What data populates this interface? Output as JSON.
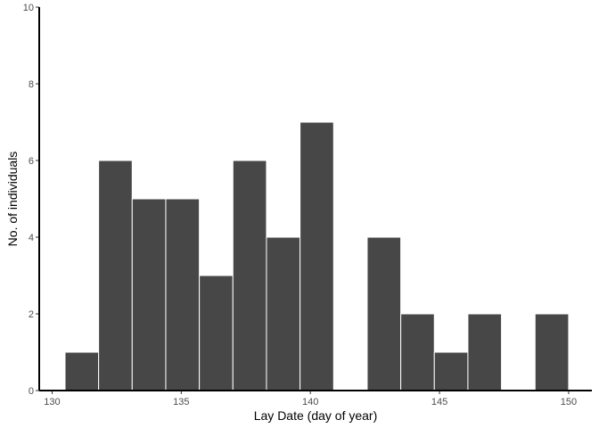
{
  "chart_data": {
    "type": "bar",
    "xlabel": "Lay Date (day of year)",
    "ylabel": "No. of individuals",
    "xlim": [
      129.5,
      150.9
    ],
    "ylim": [
      0,
      10
    ],
    "x_ticks": [
      130,
      135,
      140,
      145,
      150
    ],
    "y_ticks": [
      0,
      2,
      4,
      6,
      8,
      10
    ],
    "bin_width": 1.3,
    "bins": [
      {
        "start": 130.5,
        "end": 131.8,
        "count": 1
      },
      {
        "start": 131.8,
        "end": 133.1,
        "count": 6
      },
      {
        "start": 133.1,
        "end": 134.4,
        "count": 5
      },
      {
        "start": 134.4,
        "end": 135.7,
        "count": 5
      },
      {
        "start": 135.7,
        "end": 137.0,
        "count": 3
      },
      {
        "start": 137.0,
        "end": 138.3,
        "count": 6
      },
      {
        "start": 138.3,
        "end": 139.6,
        "count": 4
      },
      {
        "start": 139.6,
        "end": 140.9,
        "count": 7
      },
      {
        "start": 140.9,
        "end": 142.2,
        "count": 0
      },
      {
        "start": 142.2,
        "end": 143.5,
        "count": 4
      },
      {
        "start": 143.5,
        "end": 144.8,
        "count": 2
      },
      {
        "start": 144.8,
        "end": 146.1,
        "count": 1
      },
      {
        "start": 146.1,
        "end": 147.4,
        "count": 2
      },
      {
        "start": 147.4,
        "end": 148.7,
        "count": 0
      },
      {
        "start": 148.7,
        "end": 150.0,
        "count": 2
      }
    ],
    "bar_color": "#474747",
    "bar_edge_color": "#ffffff",
    "grid": false
  }
}
